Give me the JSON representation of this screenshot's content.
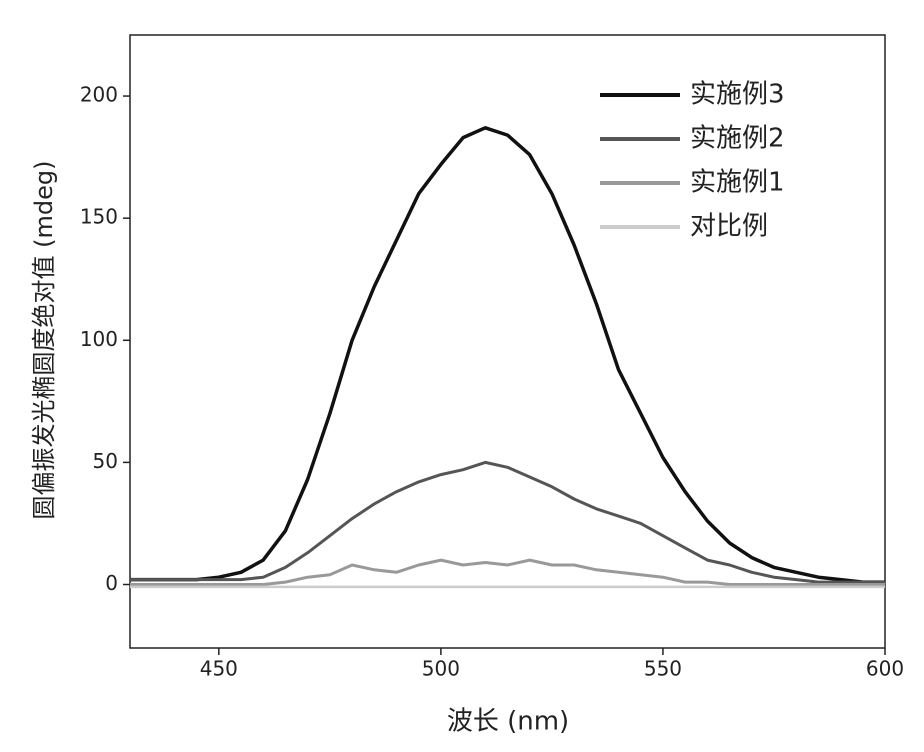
{
  "chart_data": {
    "type": "line",
    "x_label": "波长 (nm)",
    "y_label": "圆偏振发光椭圆度绝对值 (mdeg)",
    "x": [
      430,
      435,
      440,
      445,
      450,
      455,
      460,
      465,
      470,
      475,
      480,
      485,
      490,
      495,
      500,
      505,
      510,
      515,
      520,
      525,
      530,
      535,
      540,
      545,
      550,
      555,
      560,
      565,
      570,
      575,
      580,
      585,
      590,
      595,
      600
    ],
    "series": [
      {
        "name": "实施例3",
        "color": "#111111",
        "values": [
          2,
          2,
          2,
          2,
          3,
          5,
          10,
          22,
          43,
          70,
          100,
          122,
          141,
          160,
          172,
          183,
          187,
          184,
          176,
          160,
          139,
          115,
          88,
          70,
          52,
          38,
          26,
          17,
          11,
          7,
          5,
          3,
          2,
          1,
          1
        ]
      },
      {
        "name": "实施例2",
        "color": "#555555",
        "values": [
          2,
          2,
          2,
          2,
          2,
          2,
          3,
          7,
          13,
          20,
          27,
          33,
          38,
          42,
          45,
          47,
          50,
          48,
          44,
          40,
          35,
          31,
          28,
          25,
          20,
          15,
          10,
          8,
          5,
          3,
          2,
          1,
          1,
          1,
          1
        ]
      },
      {
        "name": "实施例1",
        "color": "#999999",
        "values": [
          0,
          0,
          0,
          0,
          0,
          0,
          0,
          1,
          3,
          4,
          8,
          6,
          5,
          8,
          10,
          8,
          9,
          8,
          10,
          8,
          8,
          6,
          5,
          4,
          3,
          1,
          1,
          0,
          0,
          0,
          0,
          0,
          0,
          0,
          0
        ]
      },
      {
        "name": "对比例",
        "color": "#cccccc",
        "values": [
          -1,
          -1,
          -1,
          -1,
          -1,
          -1,
          -1,
          -1,
          -1,
          -1,
          -1,
          -1,
          -1,
          -1,
          -1,
          -1,
          -1,
          -1,
          -1,
          -1,
          -1,
          -1,
          -1,
          -1,
          -1,
          -1,
          -1,
          -1,
          -1,
          -1,
          -1,
          -1,
          -1,
          -1,
          -1
        ]
      }
    ],
    "xlim": [
      430,
      600
    ],
    "xticks": [
      450,
      500,
      550,
      600
    ],
    "ylim": [
      -26,
      225
    ],
    "yticks": [
      0,
      50,
      100,
      150,
      200
    ],
    "legend": "upper-right"
  }
}
